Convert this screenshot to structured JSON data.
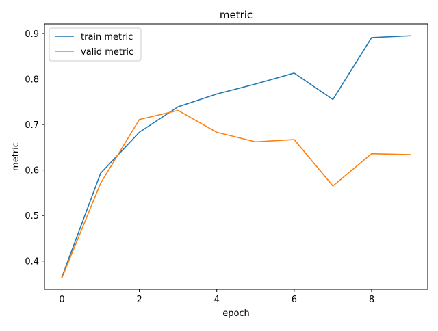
{
  "chart_data": {
    "type": "line",
    "title": "metric",
    "xlabel": "epoch",
    "ylabel": "metric",
    "x": [
      0,
      1,
      2,
      3,
      4,
      5,
      6,
      7,
      8,
      9
    ],
    "xlim": [
      -0.45,
      9.45
    ],
    "ylim": [
      0.338,
      0.921
    ],
    "xticks": [
      0,
      2,
      4,
      6,
      8
    ],
    "yticks": [
      0.4,
      0.5,
      0.6,
      0.7,
      0.8,
      0.9
    ],
    "xtick_labels": [
      "0",
      "2",
      "4",
      "6",
      "8"
    ],
    "ytick_labels": [
      "0.4",
      "0.5",
      "0.6",
      "0.7",
      "0.8",
      "0.9"
    ],
    "grid": false,
    "legend_position": "top-left",
    "series": [
      {
        "name": "train metric",
        "color": "#1f77b4",
        "values": [
          0.365,
          0.593,
          0.683,
          0.739,
          0.767,
          0.789,
          0.813,
          0.755,
          0.891,
          0.895
        ]
      },
      {
        "name": "valid metric",
        "color": "#ff7f0e",
        "values": [
          0.363,
          0.571,
          0.711,
          0.731,
          0.683,
          0.662,
          0.667,
          0.565,
          0.636,
          0.634
        ]
      }
    ]
  }
}
